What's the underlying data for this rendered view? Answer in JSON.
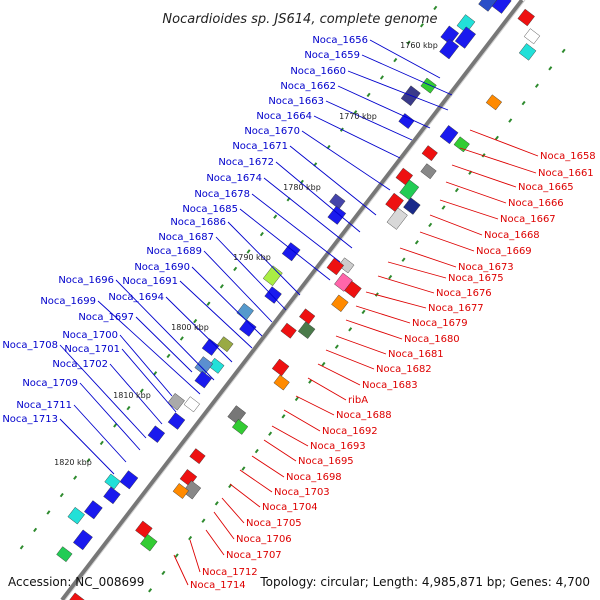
{
  "title": "Nocardioides sp. JS614, complete genome",
  "accession": "Accession: NC_008699",
  "topology": "Topology: circular; Length: 4,985,871 bp; Genes: 4,700",
  "colors": {
    "forward_label": "#0000cc",
    "reverse_label": "#dd0000",
    "backbone": "#777777",
    "tick": "#2d8a2d"
  },
  "scale_ticks": [
    {
      "label": "1760 kbp"
    },
    {
      "label": "1770 kbp"
    },
    {
      "label": "1780 kbp"
    },
    {
      "label": "1790 kbp"
    },
    {
      "label": "1800 kbp"
    },
    {
      "label": "1810 kbp"
    },
    {
      "label": "1820 kbp"
    }
  ],
  "forward_genes": [
    "Noca_1656",
    "Noca_1659",
    "Noca_1660",
    "Noca_1662",
    "Noca_1663",
    "Noca_1664",
    "Noca_1670",
    "Noca_1671",
    "Noca_1672",
    "Noca_1674",
    "Noca_1678",
    "Noca_1685",
    "Noca_1686",
    "Noca_1687",
    "Noca_1689",
    "Noca_1690",
    "Noca_1691",
    "Noca_1694",
    "Noca_1696",
    "Noca_1697",
    "Noca_1699",
    "Noca_1700",
    "Noca_1701",
    "Noca_1702",
    "Noca_1708",
    "Noca_1709",
    "Noca_1711",
    "Noca_1713"
  ],
  "reverse_genes": [
    "Noca_1658",
    "Noca_1661",
    "Noca_1665",
    "Noca_1666",
    "Noca_1667",
    "Noca_1668",
    "Noca_1669",
    "Noca_1673",
    "Noca_1675",
    "Noca_1676",
    "Noca_1677",
    "Noca_1679",
    "Noca_1680",
    "Noca_1681",
    "Noca_1682",
    "Noca_1683",
    "ribA",
    "Noca_1688",
    "Noca_1692",
    "Noca_1693",
    "Noca_1695",
    "Noca_1698",
    "Noca_1703",
    "Noca_1704",
    "Noca_1705",
    "Noca_1706",
    "Noca_1707",
    "Noca_1712",
    "Noca_1714"
  ]
}
